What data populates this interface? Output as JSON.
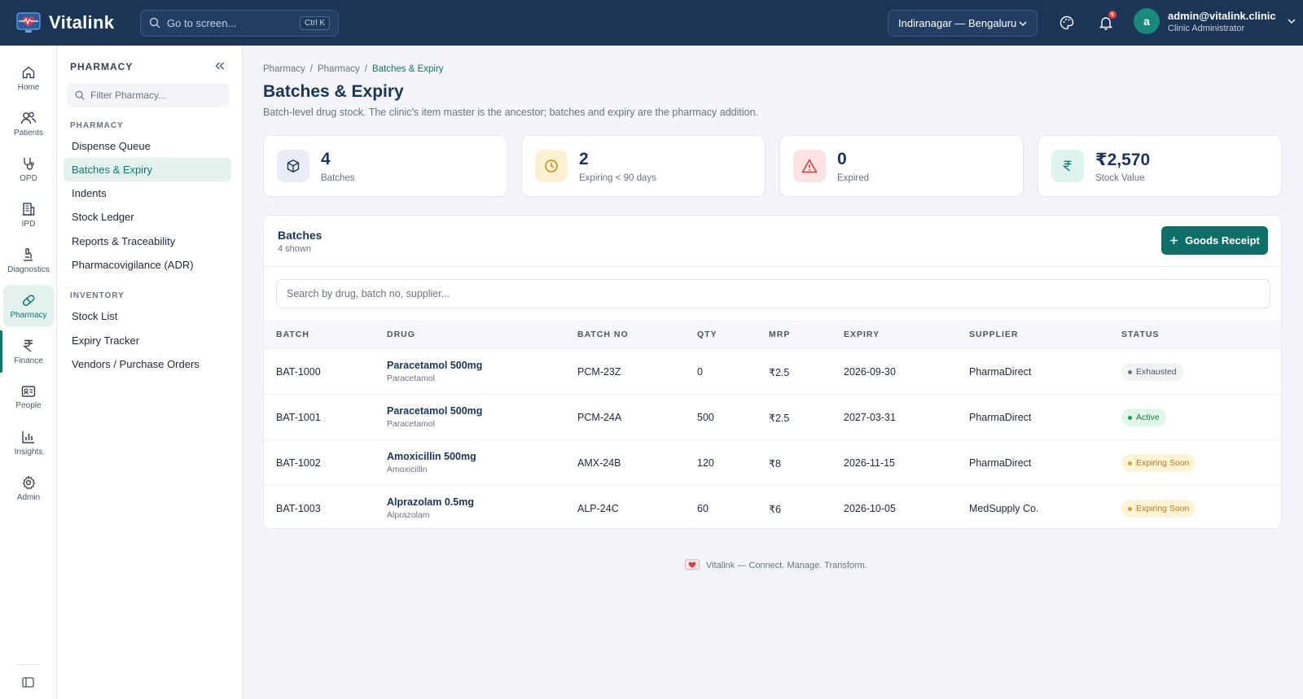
{
  "app": {
    "name": "Vitalink",
    "brand_color": "#1b3557",
    "accent_color": "#0f6e66"
  },
  "search": {
    "placeholder": "Go to screen...",
    "shortcut": "Ctrl K"
  },
  "location": {
    "selected": "Indiranagar — Bengaluru"
  },
  "notifications": {
    "count": "5"
  },
  "user": {
    "initial": "a",
    "email": "admin@vitalink.clinic",
    "role": "Clinic Administrator"
  },
  "rail": [
    {
      "label": "Home",
      "icon": "home-icon"
    },
    {
      "label": "Patients",
      "icon": "users-icon"
    },
    {
      "label": "OPD",
      "icon": "stethoscope-icon"
    },
    {
      "label": "IPD",
      "icon": "building-icon"
    },
    {
      "label": "Diagnostics",
      "icon": "microscope-icon"
    },
    {
      "label": "Pharmacy",
      "icon": "pill-icon",
      "active": true
    },
    {
      "label": "Finance",
      "icon": "rupee-icon"
    },
    {
      "label": "People",
      "icon": "id-card-icon"
    },
    {
      "label": "Insights",
      "icon": "bar-chart-icon"
    },
    {
      "label": "Admin",
      "icon": "gear-icon"
    }
  ],
  "sidebar": {
    "title": "PHARMACY",
    "filter_placeholder": "Filter Pharmacy...",
    "sections": [
      {
        "title": "PHARMACY",
        "items": [
          "Dispense Queue",
          "Batches & Expiry",
          "Indents",
          "Stock Ledger",
          "Reports & Traceability",
          "Pharmacovigilance (ADR)"
        ]
      },
      {
        "title": "INVENTORY",
        "items": [
          "Stock List",
          "Expiry Tracker",
          "Vendors / Purchase Orders"
        ]
      }
    ],
    "active_item": "Batches & Expiry"
  },
  "breadcrumb": [
    "Pharmacy",
    "Pharmacy",
    "Batches & Expiry"
  ],
  "page": {
    "title": "Batches & Expiry",
    "subtitle": "Batch-level drug stock. The clinic's item master is the ancestor; batches and expiry are the pharmacy addition."
  },
  "stats": [
    {
      "value": "4",
      "label": "Batches",
      "icon": "box-icon"
    },
    {
      "value": "2",
      "label": "Expiring < 90 days",
      "icon": "clock-icon"
    },
    {
      "value": "0",
      "label": "Expired",
      "icon": "warning-icon"
    },
    {
      "value": "₹2,570",
      "label": "Stock Value",
      "icon": "rupee-icon"
    }
  ],
  "batches": {
    "title": "Batches",
    "count": "4 shown",
    "button": "Goods Receipt",
    "search_placeholder": "Search by drug, batch no, supplier...",
    "columns": [
      "BATCH",
      "DRUG",
      "BATCH NO",
      "QTY",
      "MRP",
      "EXPIRY",
      "SUPPLIER",
      "STATUS"
    ],
    "rows": [
      {
        "batch": "BAT-1000",
        "drug": "Paracetamol 500mg",
        "generic": "Paracetamol",
        "batch_no": "PCM-23Z",
        "qty": "0",
        "mrp": "₹2.5",
        "expiry": "2026-09-30",
        "supplier": "PharmaDirect",
        "status": "Exhausted",
        "status_kind": "gray"
      },
      {
        "batch": "BAT-1001",
        "drug": "Paracetamol 500mg",
        "generic": "Paracetamol",
        "batch_no": "PCM-24A",
        "qty": "500",
        "mrp": "₹2.5",
        "expiry": "2027-03-31",
        "supplier": "PharmaDirect",
        "status": "Active",
        "status_kind": "green"
      },
      {
        "batch": "BAT-1002",
        "drug": "Amoxicillin 500mg",
        "generic": "Amoxicillin",
        "batch_no": "AMX-24B",
        "qty": "120",
        "mrp": "₹8",
        "expiry": "2026-11-15",
        "supplier": "PharmaDirect",
        "status": "Expiring Soon",
        "status_kind": "amber"
      },
      {
        "batch": "BAT-1003",
        "drug": "Alprazolam 0.5mg",
        "generic": "Alprazolam",
        "batch_no": "ALP-24C",
        "qty": "60",
        "mrp": "₹6",
        "expiry": "2026-10-05",
        "supplier": "MedSupply Co.",
        "status": "Expiring Soon",
        "status_kind": "amber"
      }
    ]
  },
  "footer": {
    "text": "Vitalink — Connect. Manage. Transform."
  }
}
